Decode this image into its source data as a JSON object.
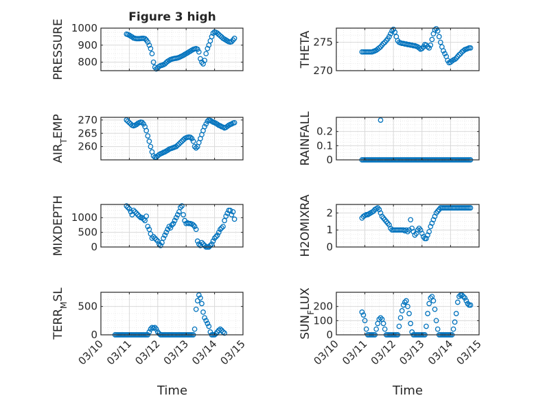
{
  "page_title": "Figure 3 high",
  "x_axis_label": "Time",
  "x_ticks": [
    "03/10",
    "03/11",
    "03/12",
    "03/13",
    "03/14",
    "03/15"
  ],
  "colors": {
    "marker": "#0072BD",
    "axes": "#262626",
    "grid": "#d9d9d9"
  },
  "chart_data": [
    {
      "type": "scatter",
      "title": "Figure 3 high",
      "ylabel": "PRESSURE",
      "ylim": [
        750,
        1000
      ],
      "yticks": [
        800,
        900,
        1000
      ],
      "grid": true,
      "x": [
        10.9,
        10.95,
        11.0,
        11.05,
        11.1,
        11.15,
        11.2,
        11.25,
        11.3,
        11.35,
        11.4,
        11.45,
        11.5,
        11.55,
        11.6,
        11.65,
        11.7,
        11.75,
        11.8,
        11.85,
        11.9,
        11.95,
        12.0,
        12.05,
        12.1,
        12.15,
        12.2,
        12.25,
        12.3,
        12.35,
        12.4,
        12.45,
        12.5,
        12.55,
        12.6,
        12.65,
        12.7,
        12.75,
        12.8,
        12.85,
        12.9,
        12.95,
        13.0,
        13.05,
        13.1,
        13.15,
        13.2,
        13.25,
        13.3,
        13.35,
        13.4,
        13.45,
        13.5,
        13.55,
        13.6,
        13.65,
        13.7,
        13.75,
        13.8,
        13.85,
        13.9,
        13.95,
        14.0,
        14.05,
        14.1,
        14.15,
        14.2,
        14.25,
        14.3,
        14.35,
        14.4,
        14.45,
        14.5,
        14.55,
        14.6,
        14.65,
        14.7
      ],
      "y": [
        965,
        962,
        958,
        953,
        948,
        942,
        940,
        938,
        938,
        938,
        939,
        940,
        940,
        938,
        930,
        918,
        900,
        880,
        850,
        800,
        770,
        760,
        765,
        775,
        780,
        782,
        785,
        790,
        798,
        805,
        810,
        815,
        818,
        820,
        822,
        823,
        825,
        828,
        832,
        836,
        840,
        845,
        850,
        855,
        860,
        865,
        870,
        875,
        878,
        880,
        876,
        860,
        820,
        800,
        790,
        810,
        850,
        880,
        900,
        925,
        950,
        970,
        978,
        975,
        970,
        962,
        955,
        948,
        940,
        935,
        930,
        925,
        920,
        918,
        920,
        930,
        940
      ]
    },
    {
      "type": "scatter",
      "ylabel": "THETA",
      "ylim": [
        270,
        277.5
      ],
      "yticks": [
        270,
        275
      ],
      "grid": true,
      "x": [
        10.9,
        10.95,
        11.0,
        11.05,
        11.1,
        11.15,
        11.2,
        11.25,
        11.3,
        11.35,
        11.4,
        11.45,
        11.5,
        11.55,
        11.6,
        11.65,
        11.7,
        11.75,
        11.8,
        11.85,
        11.9,
        11.95,
        12.0,
        12.05,
        12.1,
        12.15,
        12.2,
        12.25,
        12.3,
        12.35,
        12.4,
        12.45,
        12.5,
        12.55,
        12.6,
        12.65,
        12.7,
        12.75,
        12.8,
        12.85,
        12.9,
        12.95,
        13.0,
        13.05,
        13.1,
        13.15,
        13.2,
        13.25,
        13.3,
        13.35,
        13.4,
        13.45,
        13.5,
        13.55,
        13.6,
        13.65,
        13.7,
        13.75,
        13.8,
        13.85,
        13.9,
        13.95,
        14.0,
        14.05,
        14.1,
        14.15,
        14.2,
        14.25,
        14.3,
        14.35,
        14.4,
        14.45,
        14.5,
        14.55,
        14.6,
        14.65,
        14.7
      ],
      "y": [
        273.3,
        273.3,
        273.3,
        273.3,
        273.3,
        273.3,
        273.3,
        273.3,
        273.4,
        273.5,
        273.6,
        273.8,
        274.0,
        274.2,
        274.5,
        274.8,
        275.0,
        275.3,
        275.6,
        276.0,
        276.5,
        277.0,
        277.3,
        276.8,
        276.0,
        275.3,
        275.0,
        274.9,
        274.8,
        274.8,
        274.7,
        274.7,
        274.6,
        274.6,
        274.5,
        274.5,
        274.4,
        274.4,
        274.3,
        274.2,
        274.0,
        273.8,
        273.9,
        274.2,
        274.6,
        274.5,
        274.2,
        274.0,
        274.5,
        275.5,
        276.5,
        277.2,
        277.4,
        277.0,
        276.0,
        275.0,
        274.2,
        273.5,
        273.0,
        272.5,
        271.8,
        271.4,
        271.5,
        271.7,
        271.9,
        272.0,
        272.2,
        272.5,
        272.8,
        273.0,
        273.3,
        273.5,
        273.7,
        273.8,
        273.9,
        274.0,
        274.0
      ]
    },
    {
      "type": "scatter",
      "ylabel": "AIR_TEMP",
      "ylim": [
        255,
        271
      ],
      "yticks": [
        260,
        265,
        270
      ],
      "grid": true,
      "x": [
        10.9,
        10.95,
        11.0,
        11.05,
        11.1,
        11.15,
        11.2,
        11.25,
        11.3,
        11.35,
        11.4,
        11.45,
        11.5,
        11.55,
        11.6,
        11.65,
        11.7,
        11.75,
        11.8,
        11.85,
        11.9,
        11.95,
        12.0,
        12.05,
        12.1,
        12.15,
        12.2,
        12.25,
        12.3,
        12.35,
        12.4,
        12.45,
        12.5,
        12.55,
        12.6,
        12.65,
        12.7,
        12.75,
        12.8,
        12.85,
        12.9,
        12.95,
        13.0,
        13.05,
        13.1,
        13.15,
        13.2,
        13.25,
        13.3,
        13.35,
        13.4,
        13.45,
        13.5,
        13.55,
        13.6,
        13.65,
        13.7,
        13.75,
        13.8,
        13.85,
        13.9,
        13.95,
        14.0,
        14.05,
        14.1,
        14.15,
        14.2,
        14.25,
        14.3,
        14.35,
        14.4,
        14.45,
        14.5,
        14.55,
        14.6,
        14.65,
        14.7
      ],
      "y": [
        270,
        269.5,
        269,
        268.5,
        268,
        267.8,
        268,
        268.3,
        268.7,
        269,
        269.2,
        269.1,
        268.5,
        267.5,
        266,
        264,
        262,
        260,
        258,
        256.5,
        256,
        256,
        256.5,
        257,
        257.3,
        257.5,
        257.8,
        258,
        258.3,
        258.6,
        259,
        259.2,
        259.4,
        259.6,
        259.8,
        260,
        260.5,
        261,
        261.5,
        262,
        262.5,
        263,
        263.3,
        263.5,
        263.6,
        263.5,
        263,
        262,
        260,
        259.5,
        260,
        261.5,
        263,
        264.5,
        266,
        267.5,
        268.5,
        269.5,
        270,
        269.8,
        269.5,
        269.2,
        269,
        268.7,
        268.4,
        268,
        267.8,
        267.5,
        267.3,
        267,
        267.2,
        267.6,
        268,
        268.3,
        268.5,
        268.8,
        269
      ]
    },
    {
      "type": "scatter",
      "ylabel": "RAINFALL",
      "ylim": [
        0,
        0.3
      ],
      "yticks": [
        0,
        0.1,
        0.2
      ],
      "grid": true,
      "x": [
        10.9,
        10.95,
        11.0,
        11.05,
        11.1,
        11.15,
        11.2,
        11.25,
        11.3,
        11.35,
        11.4,
        11.45,
        11.5,
        11.55,
        11.6,
        11.65,
        11.7,
        11.75,
        11.8,
        11.85,
        11.9,
        11.95,
        12.0,
        12.05,
        12.1,
        12.15,
        12.2,
        12.25,
        12.3,
        12.35,
        12.4,
        12.45,
        12.5,
        12.55,
        12.6,
        12.65,
        12.7,
        12.75,
        12.8,
        12.85,
        12.9,
        12.95,
        13.0,
        13.05,
        13.1,
        13.15,
        13.2,
        13.25,
        13.3,
        13.35,
        13.4,
        13.45,
        13.5,
        13.55,
        13.6,
        13.65,
        13.7,
        13.75,
        13.8,
        13.85,
        13.9,
        13.95,
        14.0,
        14.05,
        14.1,
        14.15,
        14.2,
        14.25,
        14.3,
        14.35,
        14.4,
        14.45,
        14.5,
        14.55,
        14.6,
        14.65,
        14.7,
        11.55
      ],
      "y": [
        0,
        0,
        0,
        0,
        0,
        0,
        0,
        0,
        0,
        0,
        0,
        0,
        0,
        0,
        0,
        0,
        0,
        0,
        0,
        0,
        0,
        0,
        0,
        0,
        0,
        0,
        0,
        0,
        0,
        0,
        0,
        0,
        0,
        0,
        0,
        0,
        0,
        0,
        0,
        0,
        0,
        0,
        0,
        0,
        0,
        0,
        0,
        0,
        0,
        0,
        0,
        0,
        0,
        0,
        0,
        0,
        0,
        0,
        0,
        0,
        0,
        0,
        0,
        0,
        0,
        0,
        0,
        0,
        0,
        0,
        0,
        0,
        0,
        0,
        0,
        0,
        0,
        0.28
      ]
    },
    {
      "type": "scatter",
      "ylabel": "MIXDEPTH",
      "ylim": [
        0,
        1450
      ],
      "yticks": [
        0,
        500,
        1000
      ],
      "grid": true,
      "x": [
        10.9,
        10.95,
        11.0,
        11.05,
        11.1,
        11.15,
        11.2,
        11.25,
        11.3,
        11.35,
        11.4,
        11.45,
        11.5,
        11.55,
        11.6,
        11.65,
        11.7,
        11.75,
        11.8,
        11.85,
        11.9,
        11.95,
        12.0,
        12.05,
        12.1,
        12.15,
        12.2,
        12.25,
        12.3,
        12.35,
        12.4,
        12.45,
        12.5,
        12.55,
        12.6,
        12.65,
        12.7,
        12.75,
        12.8,
        12.85,
        12.9,
        12.95,
        13.0,
        13.05,
        13.1,
        13.15,
        13.2,
        13.25,
        13.3,
        13.35,
        13.4,
        13.45,
        13.5,
        13.55,
        13.6,
        13.65,
        13.7,
        13.75,
        13.8,
        13.85,
        13.9,
        13.95,
        14.0,
        14.05,
        14.1,
        14.15,
        14.2,
        14.25,
        14.3,
        14.35,
        14.4,
        14.45,
        14.5,
        14.55,
        14.6,
        14.65,
        14.7
      ],
      "y": [
        1400,
        1350,
        1300,
        1200,
        1100,
        1250,
        1200,
        1150,
        1100,
        1050,
        1000,
        1000,
        950,
        900,
        1050,
        700,
        600,
        450,
        300,
        350,
        300,
        250,
        200,
        100,
        50,
        150,
        300,
        400,
        500,
        600,
        700,
        650,
        750,
        800,
        900,
        1000,
        1100,
        1200,
        1350,
        1400,
        1100,
        900,
        800,
        820,
        800,
        800,
        780,
        750,
        700,
        600,
        200,
        100,
        50,
        150,
        100,
        50,
        0,
        0,
        0,
        50,
        100,
        200,
        300,
        350,
        400,
        500,
        600,
        650,
        700,
        900,
        1050,
        1150,
        1250,
        1250,
        1100,
        1200,
        950
      ]
    },
    {
      "type": "scatter",
      "ylabel": "H2OMIXRA",
      "ylim": [
        0,
        2.5
      ],
      "yticks": [
        0,
        1,
        2
      ],
      "grid": true,
      "x": [
        10.9,
        10.95,
        11.0,
        11.05,
        11.1,
        11.15,
        11.2,
        11.25,
        11.3,
        11.35,
        11.4,
        11.45,
        11.5,
        11.55,
        11.6,
        11.65,
        11.7,
        11.75,
        11.8,
        11.85,
        11.9,
        11.95,
        12.0,
        12.05,
        12.1,
        12.15,
        12.2,
        12.25,
        12.3,
        12.35,
        12.4,
        12.45,
        12.5,
        12.55,
        12.6,
        12.65,
        12.7,
        12.75,
        12.8,
        12.85,
        12.9,
        12.95,
        13.0,
        13.05,
        13.1,
        13.15,
        13.2,
        13.25,
        13.3,
        13.35,
        13.4,
        13.45,
        13.5,
        13.55,
        13.6,
        13.65,
        13.7,
        13.75,
        13.8,
        13.85,
        13.9,
        13.95,
        14.0,
        14.05,
        14.1,
        14.15,
        14.2,
        14.25,
        14.3,
        14.35,
        14.4,
        14.45,
        14.5,
        14.55,
        14.6,
        14.65,
        14.7
      ],
      "y": [
        1.7,
        1.8,
        1.85,
        1.9,
        1.9,
        1.95,
        2.0,
        2.05,
        2.1,
        2.2,
        2.25,
        2.3,
        2.2,
        2.0,
        1.8,
        1.7,
        1.6,
        1.5,
        1.4,
        1.3,
        1.1,
        1.0,
        1.0,
        1.0,
        1.0,
        1.0,
        1.0,
        1.0,
        1.0,
        1.0,
        0.95,
        1.0,
        0.9,
        1.0,
        1.6,
        1.1,
        0.9,
        0.7,
        0.8,
        1.0,
        1.1,
        1.0,
        0.8,
        0.6,
        0.5,
        0.5,
        0.7,
        0.9,
        1.2,
        1.4,
        1.6,
        1.8,
        2.0,
        2.1,
        2.2,
        2.3,
        2.3,
        2.3,
        2.3,
        2.3,
        2.3,
        2.3,
        2.3,
        2.3,
        2.3,
        2.3,
        2.3,
        2.3,
        2.3,
        2.3,
        2.3,
        2.3,
        2.3,
        2.3,
        2.3,
        2.3,
        2.3
      ]
    },
    {
      "type": "scatter",
      "ylabel": "TERR_MSL",
      "ylim": [
        0,
        750
      ],
      "yticks": [
        0,
        500
      ],
      "grid": true,
      "x": [
        10.5,
        10.55,
        10.6,
        10.65,
        10.7,
        10.75,
        10.8,
        10.85,
        10.9,
        10.95,
        11.0,
        11.05,
        11.1,
        11.15,
        11.2,
        11.25,
        11.3,
        11.35,
        11.4,
        11.45,
        11.5,
        11.55,
        11.6,
        11.65,
        11.7,
        11.75,
        11.8,
        11.85,
        11.9,
        11.95,
        12.0,
        12.05,
        12.1,
        12.15,
        12.2,
        12.25,
        12.3,
        12.35,
        12.4,
        12.45,
        12.5,
        12.55,
        12.6,
        12.65,
        12.7,
        12.75,
        12.8,
        12.85,
        12.9,
        12.95,
        13.0,
        13.05,
        13.1,
        13.15,
        13.2,
        13.25,
        13.3,
        13.35,
        13.4,
        13.45,
        13.5,
        13.55,
        13.6,
        13.65,
        13.7,
        13.75,
        13.8,
        13.85,
        13.9,
        13.95,
        14.0,
        14.05,
        14.1,
        14.15,
        14.2,
        14.25,
        14.3,
        14.35
      ],
      "y": [
        0,
        0,
        0,
        0,
        0,
        0,
        0,
        0,
        0,
        0,
        0,
        0,
        0,
        0,
        0,
        0,
        0,
        0,
        0,
        0,
        0,
        0,
        0,
        0,
        50,
        100,
        130,
        120,
        130,
        100,
        50,
        20,
        0,
        0,
        0,
        0,
        0,
        0,
        0,
        0,
        0,
        0,
        0,
        0,
        0,
        0,
        0,
        0,
        0,
        0,
        0,
        0,
        0,
        0,
        0,
        0,
        100,
        450,
        600,
        700,
        650,
        550,
        400,
        300,
        250,
        200,
        150,
        50,
        0,
        0,
        0,
        20,
        50,
        80,
        100,
        80,
        50,
        30
      ]
    },
    {
      "type": "scatter",
      "ylabel": "SUN_FLUX",
      "ylim": [
        0,
        300
      ],
      "yticks": [
        0,
        100,
        200
      ],
      "grid": true,
      "x": [
        10.9,
        10.95,
        11.0,
        11.05,
        11.1,
        11.15,
        11.2,
        11.25,
        11.3,
        11.35,
        11.4,
        11.45,
        11.5,
        11.55,
        11.6,
        11.65,
        11.7,
        11.75,
        11.8,
        11.85,
        11.9,
        11.95,
        12.0,
        12.05,
        12.1,
        12.15,
        12.2,
        12.25,
        12.3,
        12.35,
        12.4,
        12.45,
        12.5,
        12.55,
        12.6,
        12.65,
        12.7,
        12.75,
        12.8,
        12.85,
        12.9,
        12.95,
        13.0,
        13.05,
        13.1,
        13.15,
        13.2,
        13.25,
        13.3,
        13.35,
        13.4,
        13.45,
        13.5,
        13.55,
        13.6,
        13.65,
        13.7,
        13.75,
        13.8,
        13.85,
        13.9,
        13.95,
        14.0,
        14.05,
        14.1,
        14.15,
        14.2,
        14.25,
        14.3,
        14.35,
        14.4,
        14.45,
        14.5,
        14.55,
        14.6,
        14.65,
        14.7
      ],
      "y": [
        160,
        140,
        100,
        40,
        0,
        0,
        0,
        0,
        0,
        0,
        40,
        80,
        110,
        120,
        110,
        80,
        40,
        0,
        0,
        0,
        0,
        0,
        0,
        0,
        0,
        0,
        60,
        120,
        170,
        210,
        230,
        240,
        200,
        150,
        80,
        20,
        0,
        0,
        0,
        0,
        0,
        0,
        0,
        0,
        0,
        60,
        150,
        220,
        260,
        270,
        240,
        180,
        100,
        40,
        0,
        0,
        0,
        0,
        0,
        0,
        0,
        0,
        0,
        0,
        40,
        90,
        150,
        230,
        270,
        280,
        280,
        270,
        260,
        240,
        220,
        210,
        210
      ]
    }
  ]
}
